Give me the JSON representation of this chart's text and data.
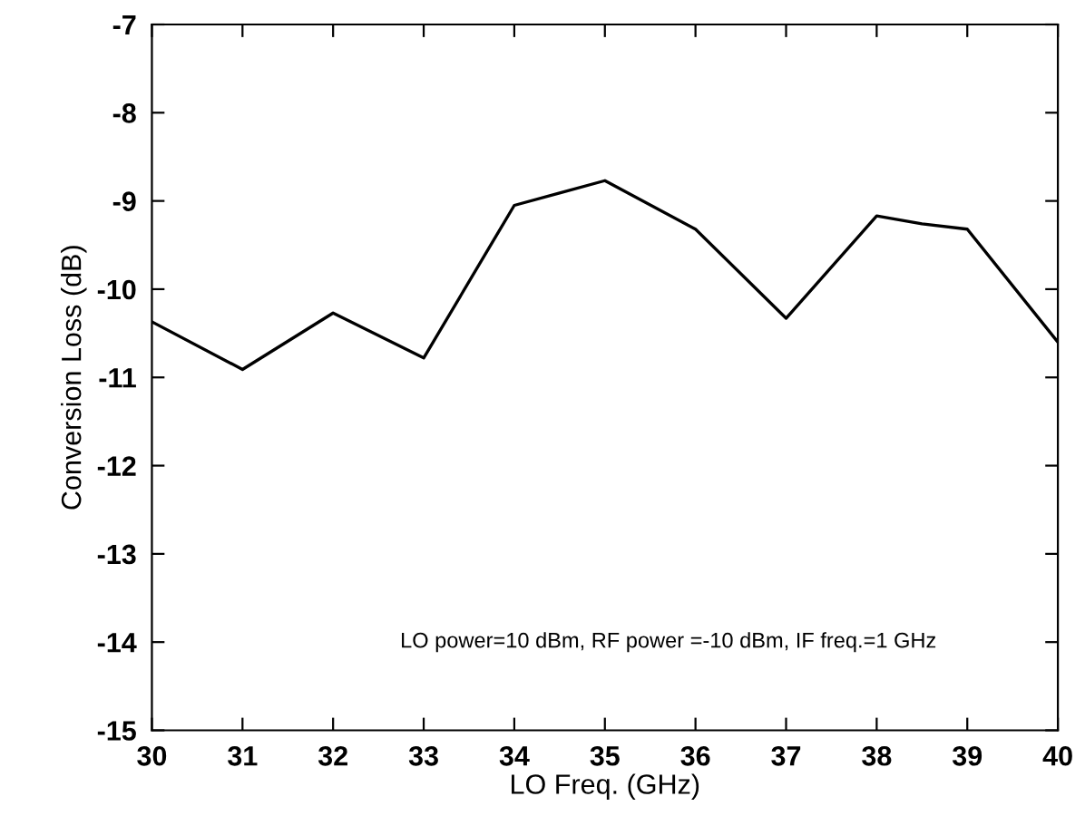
{
  "chart_data": {
    "type": "line",
    "xlabel": "LO Freq. (GHz)",
    "ylabel": "Conversion Loss (dB)",
    "x": [
      30,
      31,
      32,
      33,
      34,
      34.5,
      35,
      36,
      37,
      38,
      38.5,
      39,
      40
    ],
    "series": [
      {
        "color": "#000000",
        "values": [
          -10.37,
          -10.91,
          -10.27,
          -10.78,
          -9.05,
          -8.91,
          -8.77,
          -9.32,
          -10.33,
          -9.17,
          -9.26,
          -9.32,
          -10.6
        ]
      }
    ],
    "xlim": [
      30,
      40
    ],
    "xticks": [
      30,
      31,
      32,
      33,
      34,
      35,
      36,
      37,
      38,
      39,
      40
    ],
    "ylim": [
      -15,
      -7
    ],
    "yticks": [
      -15,
      -14,
      -13,
      -12,
      -11,
      -10,
      -9,
      -8,
      -7
    ],
    "grid": false,
    "legend": false,
    "marker": "none",
    "line_style": "solid",
    "annotations": [
      "LO power=10 dBm, RF power =-10 dBm, IF freq.=1 GHz"
    ]
  }
}
